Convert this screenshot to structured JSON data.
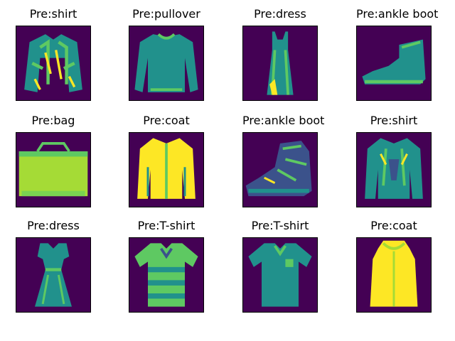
{
  "figure": {
    "background_color": "#ffffff",
    "image_background_color": "#440154",
    "palette": [
      "#440154",
      "#3b528b",
      "#21918c",
      "#5ec962",
      "#fde725"
    ],
    "panels": [
      {
        "title": "Pre:shirt",
        "icon": "shirt-icon"
      },
      {
        "title": "Pre:pullover",
        "icon": "pullover-icon"
      },
      {
        "title": "Pre:dress",
        "icon": "dress-icon"
      },
      {
        "title": "Pre:ankle boot",
        "icon": "ankle-boot-icon"
      },
      {
        "title": "Pre:bag",
        "icon": "bag-icon"
      },
      {
        "title": "Pre:coat",
        "icon": "coat-icon"
      },
      {
        "title": "Pre:ankle boot",
        "icon": "ankle-boot-icon"
      },
      {
        "title": "Pre:shirt",
        "icon": "shirt-icon"
      },
      {
        "title": "Pre:dress",
        "icon": "dress-icon"
      },
      {
        "title": "Pre:T-shirt",
        "icon": "tshirt-icon"
      },
      {
        "title": "Pre:T-shirt",
        "icon": "tshirt-icon"
      },
      {
        "title": "Pre:coat",
        "icon": "coat-icon"
      }
    ]
  }
}
